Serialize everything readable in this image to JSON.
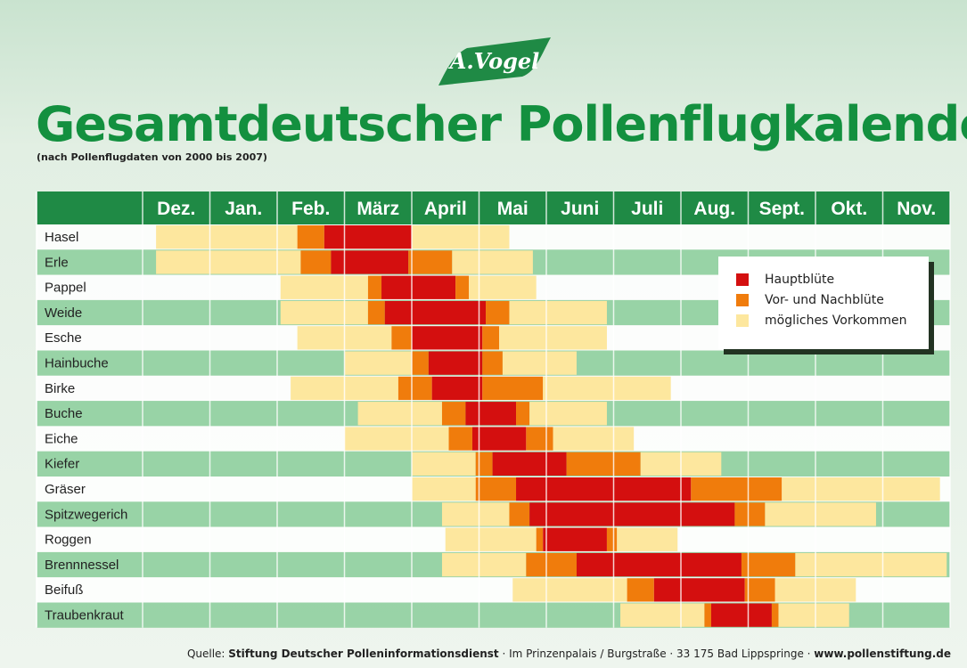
{
  "logo": {
    "text": "A.Vogel"
  },
  "title": "Gesamtdeutscher Pollenflugkalender",
  "subtitle": "(nach Pollenflugdaten von 2000 bis 2007)",
  "colors": {
    "header_green": "#1f8a45",
    "main": "#d40f0f",
    "pre_post": "#f07c0c",
    "possible": "#fde79e",
    "row_white": "#ffffff",
    "row_green": "#8fcf9f"
  },
  "legend": {
    "main": "Hauptblüte",
    "pre_post": "Vor- und Nachblüte",
    "possible": "mögliches Vorkommen"
  },
  "chart_data": {
    "type": "table",
    "columns": [
      "Dez.",
      "Jan.",
      "Feb.",
      "März",
      "April",
      "Mai",
      "Juni",
      "Juli",
      "Aug.",
      "Sept.",
      "Okt.",
      "Nov."
    ],
    "value_unit": "month index (0 = start of Dez., 12 = end of Nov.)",
    "rows": [
      {
        "plant": "Hasel",
        "bands": [
          {
            "type": "possible",
            "start": 0.2,
            "end": 2.3
          },
          {
            "type": "pre_post",
            "start": 2.3,
            "end": 2.7
          },
          {
            "type": "main",
            "start": 2.7,
            "end": 4.0
          },
          {
            "type": "possible",
            "start": 4.0,
            "end": 5.45
          }
        ]
      },
      {
        "plant": "Erle",
        "bands": [
          {
            "type": "possible",
            "start": 0.2,
            "end": 2.35
          },
          {
            "type": "pre_post",
            "start": 2.35,
            "end": 2.8
          },
          {
            "type": "main",
            "start": 2.8,
            "end": 3.95
          },
          {
            "type": "pre_post",
            "start": 3.95,
            "end": 4.6
          },
          {
            "type": "possible",
            "start": 4.6,
            "end": 5.8
          }
        ]
      },
      {
        "plant": "Pappel",
        "bands": [
          {
            "type": "possible",
            "start": 2.05,
            "end": 3.35
          },
          {
            "type": "pre_post",
            "start": 3.35,
            "end": 3.55
          },
          {
            "type": "main",
            "start": 3.55,
            "end": 4.65
          },
          {
            "type": "pre_post",
            "start": 4.65,
            "end": 4.85
          },
          {
            "type": "possible",
            "start": 4.85,
            "end": 5.85
          }
        ]
      },
      {
        "plant": "Weide",
        "bands": [
          {
            "type": "possible",
            "start": 2.05,
            "end": 3.35
          },
          {
            "type": "pre_post",
            "start": 3.35,
            "end": 3.6
          },
          {
            "type": "main",
            "start": 3.6,
            "end": 5.1
          },
          {
            "type": "pre_post",
            "start": 5.1,
            "end": 5.45
          },
          {
            "type": "possible",
            "start": 5.45,
            "end": 6.9
          }
        ]
      },
      {
        "plant": "Esche",
        "bands": [
          {
            "type": "possible",
            "start": 2.3,
            "end": 3.7
          },
          {
            "type": "pre_post",
            "start": 3.7,
            "end": 4.0
          },
          {
            "type": "main",
            "start": 4.0,
            "end": 5.05
          },
          {
            "type": "pre_post",
            "start": 5.05,
            "end": 5.3
          },
          {
            "type": "possible",
            "start": 5.3,
            "end": 6.9
          }
        ]
      },
      {
        "plant": "Hainbuche",
        "bands": [
          {
            "type": "possible",
            "start": 3.0,
            "end": 4.0
          },
          {
            "type": "pre_post",
            "start": 4.0,
            "end": 4.25
          },
          {
            "type": "main",
            "start": 4.25,
            "end": 5.05
          },
          {
            "type": "pre_post",
            "start": 5.05,
            "end": 5.35
          },
          {
            "type": "possible",
            "start": 5.35,
            "end": 6.45
          }
        ]
      },
      {
        "plant": "Birke",
        "bands": [
          {
            "type": "possible",
            "start": 2.2,
            "end": 3.8
          },
          {
            "type": "pre_post",
            "start": 3.8,
            "end": 4.3
          },
          {
            "type": "main",
            "start": 4.3,
            "end": 5.05
          },
          {
            "type": "pre_post",
            "start": 5.05,
            "end": 5.95
          },
          {
            "type": "possible",
            "start": 5.95,
            "end": 7.85
          }
        ]
      },
      {
        "plant": "Buche",
        "bands": [
          {
            "type": "possible",
            "start": 3.2,
            "end": 4.45
          },
          {
            "type": "pre_post",
            "start": 4.45,
            "end": 4.8
          },
          {
            "type": "main",
            "start": 4.8,
            "end": 5.55
          },
          {
            "type": "pre_post",
            "start": 5.55,
            "end": 5.75
          },
          {
            "type": "possible",
            "start": 5.75,
            "end": 6.9
          }
        ]
      },
      {
        "plant": "Eiche",
        "bands": [
          {
            "type": "possible",
            "start": 3.0,
            "end": 4.55
          },
          {
            "type": "pre_post",
            "start": 4.55,
            "end": 4.9
          },
          {
            "type": "main",
            "start": 4.9,
            "end": 5.7
          },
          {
            "type": "pre_post",
            "start": 5.7,
            "end": 6.1
          },
          {
            "type": "possible",
            "start": 6.1,
            "end": 7.3
          }
        ]
      },
      {
        "plant": "Kiefer",
        "bands": [
          {
            "type": "possible",
            "start": 4.0,
            "end": 4.95
          },
          {
            "type": "pre_post",
            "start": 4.95,
            "end": 5.2
          },
          {
            "type": "main",
            "start": 5.2,
            "end": 6.3
          },
          {
            "type": "pre_post",
            "start": 6.3,
            "end": 7.4
          },
          {
            "type": "possible",
            "start": 7.4,
            "end": 8.6
          }
        ]
      },
      {
        "plant": "Gräser",
        "bands": [
          {
            "type": "possible",
            "start": 4.0,
            "end": 4.95
          },
          {
            "type": "pre_post",
            "start": 4.95,
            "end": 5.55
          },
          {
            "type": "main",
            "start": 5.55,
            "end": 8.15
          },
          {
            "type": "pre_post",
            "start": 8.15,
            "end": 9.5
          },
          {
            "type": "possible",
            "start": 9.5,
            "end": 11.85
          }
        ]
      },
      {
        "plant": "Spitzwegerich",
        "bands": [
          {
            "type": "possible",
            "start": 4.45,
            "end": 5.45
          },
          {
            "type": "pre_post",
            "start": 5.45,
            "end": 5.75
          },
          {
            "type": "main",
            "start": 5.75,
            "end": 8.8
          },
          {
            "type": "pre_post",
            "start": 8.8,
            "end": 9.25
          },
          {
            "type": "possible",
            "start": 9.25,
            "end": 10.9
          }
        ]
      },
      {
        "plant": "Roggen",
        "bands": [
          {
            "type": "possible",
            "start": 4.5,
            "end": 5.85
          },
          {
            "type": "pre_post",
            "start": 5.85,
            "end": 5.95
          },
          {
            "type": "main",
            "start": 5.95,
            "end": 6.9
          },
          {
            "type": "pre_post",
            "start": 6.9,
            "end": 7.05
          },
          {
            "type": "possible",
            "start": 7.05,
            "end": 7.95
          }
        ]
      },
      {
        "plant": "Brennnessel",
        "bands": [
          {
            "type": "possible",
            "start": 4.45,
            "end": 5.7
          },
          {
            "type": "pre_post",
            "start": 5.7,
            "end": 6.45
          },
          {
            "type": "main",
            "start": 6.45,
            "end": 8.9
          },
          {
            "type": "pre_post",
            "start": 8.9,
            "end": 9.7
          },
          {
            "type": "possible",
            "start": 9.7,
            "end": 11.95
          }
        ]
      },
      {
        "plant": "Beifuß",
        "bands": [
          {
            "type": "possible",
            "start": 5.5,
            "end": 7.2
          },
          {
            "type": "pre_post",
            "start": 7.2,
            "end": 7.6
          },
          {
            "type": "main",
            "start": 7.6,
            "end": 8.95
          },
          {
            "type": "pre_post",
            "start": 8.95,
            "end": 9.4
          },
          {
            "type": "possible",
            "start": 9.4,
            "end": 10.6
          }
        ]
      },
      {
        "plant": "Traubenkraut",
        "bands": [
          {
            "type": "possible",
            "start": 7.1,
            "end": 8.35
          },
          {
            "type": "pre_post",
            "start": 8.35,
            "end": 8.45
          },
          {
            "type": "main",
            "start": 8.45,
            "end": 9.35
          },
          {
            "type": "pre_post",
            "start": 9.35,
            "end": 9.45
          },
          {
            "type": "possible",
            "start": 9.45,
            "end": 10.5
          }
        ]
      }
    ]
  },
  "footer": {
    "prefix": "Quelle: ",
    "source": "Stiftung Deutscher Polleninformationsdienst",
    "address": " · Im Prinzenpalais / Burgstraße · 33 175 Bad Lippspringe · ",
    "url": "www.pollenstiftung.de"
  }
}
